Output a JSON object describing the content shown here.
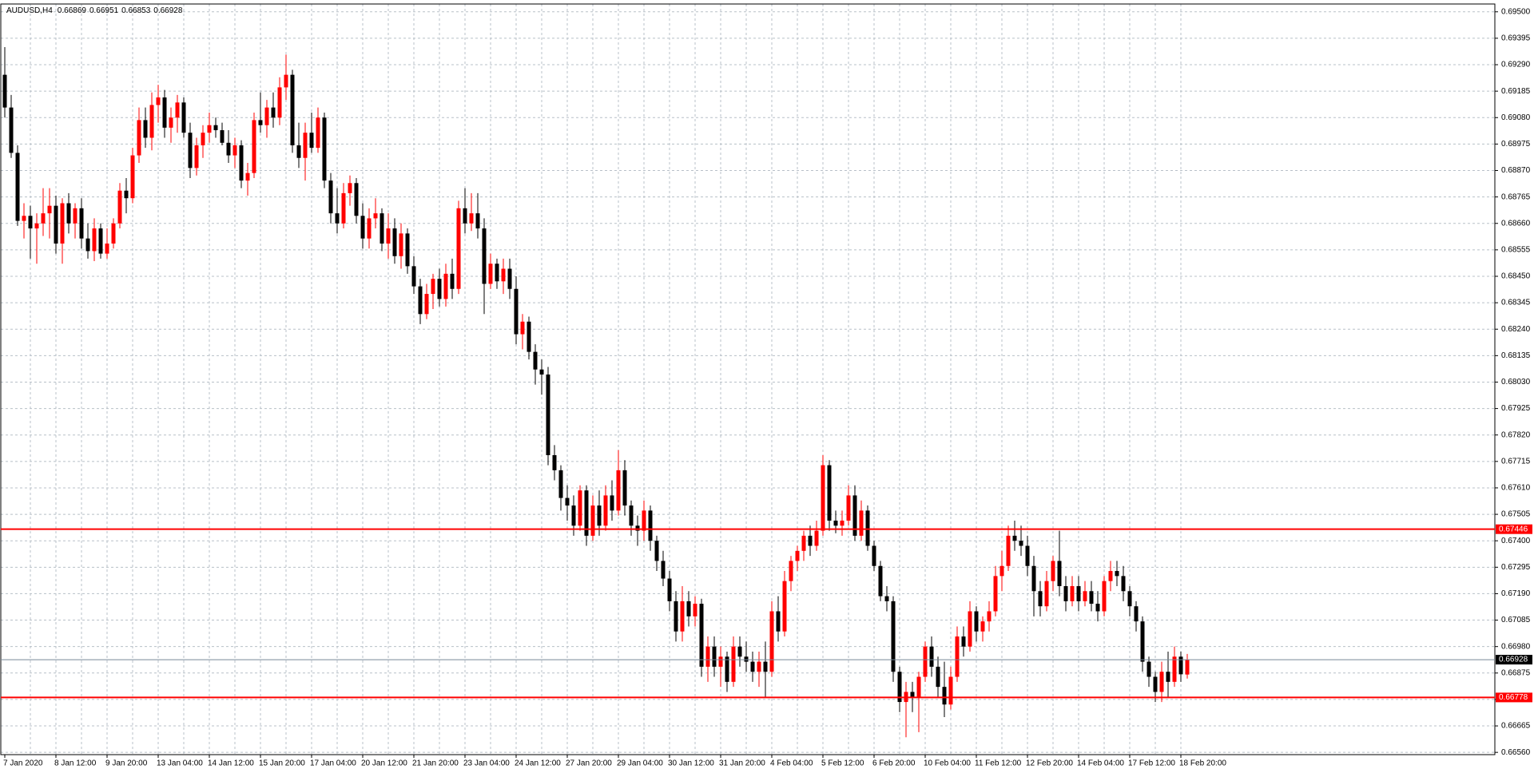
{
  "chart_data": {
    "type": "candlestick",
    "title": "AUDUSD,H4",
    "up_color": "#ff0000",
    "down_color": "#000000",
    "grid": true,
    "ylim": [
      0.66551,
      0.69531
    ],
    "yticks": [
      {
        "value": 0.695,
        "label": "0.69500"
      },
      0.69395,
      {
        "value": 0.6929,
        "label": "0.69290"
      },
      0.69185,
      {
        "value": 0.6908,
        "label": "0.69080"
      },
      0.68975,
      {
        "value": 0.6887,
        "label": "0.68870"
      },
      0.68765,
      {
        "value": 0.6866,
        "label": "0.68660"
      },
      0.68555,
      {
        "value": 0.6845,
        "label": "0.68450"
      },
      0.68345,
      {
        "value": 0.6824,
        "label": "0.68240"
      },
      0.68135,
      {
        "value": 0.6803,
        "label": "0.68030"
      },
      0.67925,
      {
        "value": 0.6782,
        "label": "0.67820"
      },
      0.67715,
      {
        "value": 0.6761,
        "label": "0.67610"
      },
      0.67505,
      {
        "value": 0.674,
        "label": "0.67400"
      },
      0.67295,
      {
        "value": 0.6719,
        "label": "0.67190"
      },
      0.67085,
      {
        "value": 0.6698,
        "label": "0.66980"
      },
      0.66875,
      {
        "value": 0.6677,
        "label": "0.66770"
      },
      0.66665,
      {
        "value": 0.6656,
        "label": "0.66560"
      }
    ],
    "hlines": [
      {
        "value": 0.67446,
        "color": "#ff0000",
        "label_background": "#ff0000"
      },
      {
        "value": 0.66778,
        "color": "#ff0000",
        "label_background": "#ff0000"
      },
      {
        "value": 0.66928,
        "color": "#778899",
        "label_background": "#000000"
      }
    ],
    "categories": [
      "7 Jan 2020",
      null,
      null,
      null,
      null,
      null,
      null,
      null,
      "8 Jan 12:00",
      null,
      null,
      null,
      null,
      null,
      null,
      null,
      "9 Jan 20:00",
      null,
      null,
      null,
      null,
      null,
      null,
      null,
      "13 Jan 04:00",
      null,
      null,
      null,
      null,
      null,
      null,
      null,
      "14 Jan 12:00",
      null,
      null,
      null,
      null,
      null,
      null,
      null,
      "15 Jan 20:00",
      null,
      null,
      null,
      null,
      null,
      null,
      null,
      "17 Jan 04:00",
      null,
      null,
      null,
      null,
      null,
      null,
      null,
      "20 Jan 12:00",
      null,
      null,
      null,
      null,
      null,
      null,
      null,
      "21 Jan 20:00",
      null,
      null,
      null,
      null,
      null,
      null,
      null,
      "23 Jan 04:00",
      null,
      null,
      null,
      null,
      null,
      null,
      null,
      "24 Jan 12:00",
      null,
      null,
      null,
      null,
      null,
      null,
      null,
      "27 Jan 20:00",
      null,
      null,
      null,
      null,
      null,
      null,
      null,
      "29 Jan 04:00",
      null,
      null,
      null,
      null,
      null,
      null,
      null,
      "30 Jan 12:00",
      null,
      null,
      null,
      null,
      null,
      null,
      null,
      "31 Jan 20:00",
      null,
      null,
      null,
      null,
      null,
      null,
      null,
      "4 Feb 04:00",
      null,
      null,
      null,
      null,
      null,
      null,
      null,
      "5 Feb 12:00",
      null,
      null,
      null,
      null,
      null,
      null,
      null,
      "6 Feb 20:00",
      null,
      null,
      null,
      null,
      null,
      null,
      null,
      "10 Feb 04:00",
      null,
      null,
      null,
      null,
      null,
      null,
      null,
      "11 Feb 12:00",
      null,
      null,
      null,
      null,
      null,
      null,
      null,
      "12 Feb 20:00",
      null,
      null,
      null,
      null,
      null,
      null,
      null,
      "14 Feb 04:00",
      null,
      null,
      null,
      null,
      null,
      null,
      null,
      "17 Feb 12:00",
      null,
      null,
      null,
      null,
      null,
      null,
      null,
      "18 Feb 20:00",
      null
    ],
    "candles": [
      [
        0.6925,
        0.6936,
        0.6908,
        0.6912
      ],
      [
        0.6912,
        0.6917,
        0.6892,
        0.6894
      ],
      [
        0.6894,
        0.6897,
        0.6865,
        0.6867
      ],
      [
        0.6867,
        0.6874,
        0.686,
        0.6869
      ],
      [
        0.6869,
        0.6873,
        0.6852,
        0.6864
      ],
      [
        0.6864,
        0.687,
        0.685,
        0.6866
      ],
      [
        0.6866,
        0.688,
        0.6861,
        0.687
      ],
      [
        0.687,
        0.688,
        0.686,
        0.6873
      ],
      [
        0.6873,
        0.6877,
        0.6854,
        0.6858
      ],
      [
        0.6858,
        0.6876,
        0.685,
        0.6874
      ],
      [
        0.6874,
        0.6878,
        0.6862,
        0.6866
      ],
      [
        0.6866,
        0.6874,
        0.686,
        0.6872
      ],
      [
        0.6872,
        0.6876,
        0.6856,
        0.686
      ],
      [
        0.686,
        0.6866,
        0.6852,
        0.6855
      ],
      [
        0.6855,
        0.6868,
        0.6851,
        0.6864
      ],
      [
        0.6864,
        0.6866,
        0.6852,
        0.6854
      ],
      [
        0.6854,
        0.6864,
        0.6852,
        0.6858
      ],
      [
        0.6858,
        0.6868,
        0.6856,
        0.6866
      ],
      [
        0.6866,
        0.6882,
        0.6864,
        0.6879
      ],
      [
        0.6879,
        0.6884,
        0.687,
        0.6876
      ],
      [
        0.6876,
        0.6896,
        0.6874,
        0.6893
      ],
      [
        0.6893,
        0.6912,
        0.689,
        0.6907
      ],
      [
        0.6907,
        0.6912,
        0.6896,
        0.69
      ],
      [
        0.69,
        0.6918,
        0.6895,
        0.6913
      ],
      [
        0.6913,
        0.6921,
        0.6906,
        0.6916
      ],
      [
        0.6916,
        0.6919,
        0.69,
        0.6904
      ],
      [
        0.6904,
        0.6912,
        0.6898,
        0.6908
      ],
      [
        0.6908,
        0.6917,
        0.6902,
        0.6914
      ],
      [
        0.6914,
        0.6916,
        0.69,
        0.6902
      ],
      [
        0.6902,
        0.6906,
        0.6884,
        0.6888
      ],
      [
        0.6888,
        0.69,
        0.6885,
        0.6897
      ],
      [
        0.6897,
        0.6905,
        0.6892,
        0.6902
      ],
      [
        0.6902,
        0.691,
        0.6898,
        0.6905
      ],
      [
        0.6905,
        0.6908,
        0.69,
        0.6903
      ],
      [
        0.6903,
        0.6906,
        0.6897,
        0.6898
      ],
      [
        0.6898,
        0.6903,
        0.689,
        0.6893
      ],
      [
        0.6893,
        0.69,
        0.6888,
        0.6897
      ],
      [
        0.6897,
        0.6899,
        0.688,
        0.6883
      ],
      [
        0.6883,
        0.689,
        0.6877,
        0.6886
      ],
      [
        0.6886,
        0.691,
        0.6884,
        0.6907
      ],
      [
        0.6907,
        0.6918,
        0.6902,
        0.6905
      ],
      [
        0.6905,
        0.6915,
        0.69,
        0.6912
      ],
      [
        0.6912,
        0.6918,
        0.6904,
        0.6908
      ],
      [
        0.6908,
        0.6924,
        0.6905,
        0.692
      ],
      [
        0.692,
        0.6933,
        0.6915,
        0.6925
      ],
      [
        0.6925,
        0.6927,
        0.6894,
        0.6897
      ],
      [
        0.6897,
        0.6906,
        0.6888,
        0.6892
      ],
      [
        0.6892,
        0.6906,
        0.6883,
        0.6902
      ],
      [
        0.6902,
        0.691,
        0.6894,
        0.6896
      ],
      [
        0.6896,
        0.6912,
        0.6894,
        0.6908
      ],
      [
        0.6908,
        0.691,
        0.688,
        0.6883
      ],
      [
        0.6883,
        0.6886,
        0.6866,
        0.687
      ],
      [
        0.687,
        0.688,
        0.6862,
        0.6866
      ],
      [
        0.6866,
        0.6882,
        0.6864,
        0.6878
      ],
      [
        0.6878,
        0.6885,
        0.6873,
        0.6882
      ],
      [
        0.6882,
        0.6884,
        0.6866,
        0.6869
      ],
      [
        0.6869,
        0.6874,
        0.6856,
        0.686
      ],
      [
        0.686,
        0.6872,
        0.6856,
        0.6868
      ],
      [
        0.6868,
        0.6876,
        0.6864,
        0.687
      ],
      [
        0.687,
        0.6872,
        0.6855,
        0.6858
      ],
      [
        0.6858,
        0.687,
        0.6852,
        0.6864
      ],
      [
        0.6864,
        0.6868,
        0.685,
        0.6853
      ],
      [
        0.6853,
        0.6866,
        0.6848,
        0.6862
      ],
      [
        0.6862,
        0.6864,
        0.6846,
        0.6849
      ],
      [
        0.6849,
        0.6853,
        0.6838,
        0.6841
      ],
      [
        0.6841,
        0.6844,
        0.6826,
        0.683
      ],
      [
        0.683,
        0.6842,
        0.6828,
        0.6838
      ],
      [
        0.6838,
        0.6846,
        0.6832,
        0.6844
      ],
      [
        0.6844,
        0.6848,
        0.6833,
        0.6836
      ],
      [
        0.6836,
        0.685,
        0.6833,
        0.6846
      ],
      [
        0.6846,
        0.6852,
        0.6836,
        0.684
      ],
      [
        0.684,
        0.6875,
        0.6838,
        0.6872
      ],
      [
        0.6872,
        0.688,
        0.6862,
        0.6866
      ],
      [
        0.6866,
        0.6878,
        0.6863,
        0.687
      ],
      [
        0.687,
        0.6878,
        0.686,
        0.6864
      ],
      [
        0.6864,
        0.6868,
        0.683,
        0.6842
      ],
      [
        0.6842,
        0.6854,
        0.684,
        0.685
      ],
      [
        0.685,
        0.6852,
        0.684,
        0.6843
      ],
      [
        0.6843,
        0.6852,
        0.6838,
        0.6848
      ],
      [
        0.6848,
        0.6852,
        0.6836,
        0.684
      ],
      [
        0.684,
        0.6845,
        0.6818,
        0.6822
      ],
      [
        0.6822,
        0.683,
        0.6816,
        0.6827
      ],
      [
        0.6827,
        0.6829,
        0.6812,
        0.6815
      ],
      [
        0.6815,
        0.6818,
        0.6802,
        0.6808
      ],
      [
        0.6808,
        0.6812,
        0.6798,
        0.6806
      ],
      [
        0.6806,
        0.6809,
        0.677,
        0.6774
      ],
      [
        0.6774,
        0.6778,
        0.6764,
        0.6768
      ],
      [
        0.6768,
        0.677,
        0.6752,
        0.6757
      ],
      [
        0.6757,
        0.6762,
        0.6748,
        0.6754
      ],
      [
        0.6754,
        0.6758,
        0.6742,
        0.6746
      ],
      [
        0.6746,
        0.6762,
        0.6744,
        0.676
      ],
      [
        0.676,
        0.6762,
        0.6738,
        0.6742
      ],
      [
        0.6742,
        0.6758,
        0.674,
        0.6754
      ],
      [
        0.6754,
        0.676,
        0.6742,
        0.6746
      ],
      [
        0.6746,
        0.6762,
        0.6744,
        0.6758
      ],
      [
        0.6758,
        0.6764,
        0.6748,
        0.6752
      ],
      [
        0.6752,
        0.6776,
        0.675,
        0.6768
      ],
      [
        0.6768,
        0.6772,
        0.675,
        0.6754
      ],
      [
        0.6754,
        0.6756,
        0.6742,
        0.6746
      ],
      [
        0.6746,
        0.675,
        0.6738,
        0.6744
      ],
      [
        0.6744,
        0.6756,
        0.674,
        0.6752
      ],
      [
        0.6752,
        0.6754,
        0.6736,
        0.674
      ],
      [
        0.674,
        0.6742,
        0.6728,
        0.6732
      ],
      [
        0.6732,
        0.6736,
        0.6722,
        0.6725
      ],
      [
        0.6725,
        0.6728,
        0.6712,
        0.6716
      ],
      [
        0.6716,
        0.672,
        0.67,
        0.6704
      ],
      [
        0.6704,
        0.6722,
        0.67,
        0.6716
      ],
      [
        0.6716,
        0.672,
        0.6706,
        0.671
      ],
      [
        0.671,
        0.6718,
        0.6706,
        0.6715
      ],
      [
        0.6715,
        0.6717,
        0.6686,
        0.669
      ],
      [
        0.669,
        0.6702,
        0.6684,
        0.6698
      ],
      [
        0.6698,
        0.6702,
        0.6686,
        0.669
      ],
      [
        0.669,
        0.6698,
        0.6682,
        0.6694
      ],
      [
        0.6694,
        0.6696,
        0.668,
        0.6684
      ],
      [
        0.6684,
        0.6702,
        0.6682,
        0.6698
      ],
      [
        0.6698,
        0.6702,
        0.669,
        0.6694
      ],
      [
        0.6694,
        0.67,
        0.6688,
        0.6692
      ],
      [
        0.6692,
        0.6696,
        0.6684,
        0.6688
      ],
      [
        0.6688,
        0.6696,
        0.6682,
        0.6692
      ],
      [
        0.6692,
        0.67,
        0.6678,
        0.6688
      ],
      [
        0.6688,
        0.6716,
        0.6686,
        0.6712
      ],
      [
        0.6712,
        0.6718,
        0.67,
        0.6704
      ],
      [
        0.6704,
        0.6728,
        0.6702,
        0.6724
      ],
      [
        0.6724,
        0.6734,
        0.672,
        0.6732
      ],
      [
        0.6732,
        0.6738,
        0.6728,
        0.6736
      ],
      [
        0.6736,
        0.6744,
        0.6732,
        0.6742
      ],
      [
        0.6742,
        0.6746,
        0.6734,
        0.6738
      ],
      [
        0.6738,
        0.6748,
        0.6736,
        0.6744
      ],
      [
        0.6744,
        0.6774,
        0.6742,
        0.677
      ],
      [
        0.677,
        0.6772,
        0.6744,
        0.6748
      ],
      [
        0.6748,
        0.6752,
        0.6743,
        0.6746
      ],
      [
        0.6746,
        0.6752,
        0.6742,
        0.6748
      ],
      [
        0.6748,
        0.6762,
        0.6746,
        0.6758
      ],
      [
        0.6758,
        0.6762,
        0.674,
        0.6742
      ],
      [
        0.6742,
        0.6756,
        0.674,
        0.6752
      ],
      [
        0.6752,
        0.6754,
        0.6736,
        0.6738
      ],
      [
        0.6738,
        0.674,
        0.6728,
        0.673
      ],
      [
        0.673,
        0.6732,
        0.6716,
        0.6718
      ],
      [
        0.6718,
        0.6722,
        0.6712,
        0.6716
      ],
      [
        0.6716,
        0.6718,
        0.6684,
        0.6688
      ],
      [
        0.6688,
        0.669,
        0.6672,
        0.6676
      ],
      [
        0.6676,
        0.6684,
        0.6662,
        0.668
      ],
      [
        0.668,
        0.6684,
        0.6672,
        0.6678
      ],
      [
        0.6678,
        0.6688,
        0.6664,
        0.6686
      ],
      [
        0.6686,
        0.67,
        0.6684,
        0.6698
      ],
      [
        0.6698,
        0.6702,
        0.6686,
        0.669
      ],
      [
        0.669,
        0.6694,
        0.6678,
        0.6682
      ],
      [
        0.6682,
        0.6692,
        0.667,
        0.6675
      ],
      [
        0.6675,
        0.669,
        0.6673,
        0.6686
      ],
      [
        0.6686,
        0.6706,
        0.6684,
        0.6702
      ],
      [
        0.6702,
        0.6706,
        0.6694,
        0.6698
      ],
      [
        0.6698,
        0.6716,
        0.6696,
        0.6712
      ],
      [
        0.6712,
        0.6714,
        0.67,
        0.6704
      ],
      [
        0.6704,
        0.671,
        0.67,
        0.6708
      ],
      [
        0.6708,
        0.6716,
        0.6704,
        0.6712
      ],
      [
        0.6712,
        0.673,
        0.671,
        0.6726
      ],
      [
        0.6726,
        0.6736,
        0.672,
        0.673
      ],
      [
        0.673,
        0.6746,
        0.6728,
        0.6742
      ],
      [
        0.6742,
        0.6748,
        0.6736,
        0.674
      ],
      [
        0.674,
        0.6746,
        0.6734,
        0.6738
      ],
      [
        0.6738,
        0.6742,
        0.6726,
        0.673
      ],
      [
        0.673,
        0.6734,
        0.671,
        0.672
      ],
      [
        0.672,
        0.6724,
        0.671,
        0.6714
      ],
      [
        0.6714,
        0.6728,
        0.6712,
        0.6724
      ],
      [
        0.6724,
        0.6734,
        0.672,
        0.6732
      ],
      [
        0.6732,
        0.6744,
        0.6718,
        0.6722
      ],
      [
        0.6722,
        0.6726,
        0.6712,
        0.6716
      ],
      [
        0.6716,
        0.6726,
        0.6714,
        0.6722
      ],
      [
        0.6722,
        0.6726,
        0.6712,
        0.6716
      ],
      [
        0.6716,
        0.6724,
        0.6714,
        0.672
      ],
      [
        0.672,
        0.6724,
        0.6712,
        0.6715
      ],
      [
        0.6715,
        0.672,
        0.6708,
        0.6712
      ],
      [
        0.6712,
        0.6726,
        0.671,
        0.6724
      ],
      [
        0.6724,
        0.6732,
        0.672,
        0.6728
      ],
      [
        0.6728,
        0.6732,
        0.6722,
        0.6726
      ],
      [
        0.6726,
        0.673,
        0.6716,
        0.672
      ],
      [
        0.672,
        0.6722,
        0.671,
        0.6714
      ],
      [
        0.6714,
        0.6716,
        0.6704,
        0.6708
      ],
      [
        0.6708,
        0.671,
        0.6688,
        0.6692
      ],
      [
        0.6692,
        0.6694,
        0.6682,
        0.6686
      ],
      [
        0.6686,
        0.6688,
        0.6676,
        0.668
      ],
      [
        0.668,
        0.6692,
        0.6676,
        0.6688
      ],
      [
        0.6688,
        0.6696,
        0.6678,
        0.6684
      ],
      [
        0.6684,
        0.6698,
        0.6682,
        0.6694
      ],
      [
        0.6694,
        0.6696,
        0.6684,
        0.6687
      ],
      [
        0.66869,
        0.66951,
        0.66853,
        0.66928
      ]
    ]
  }
}
